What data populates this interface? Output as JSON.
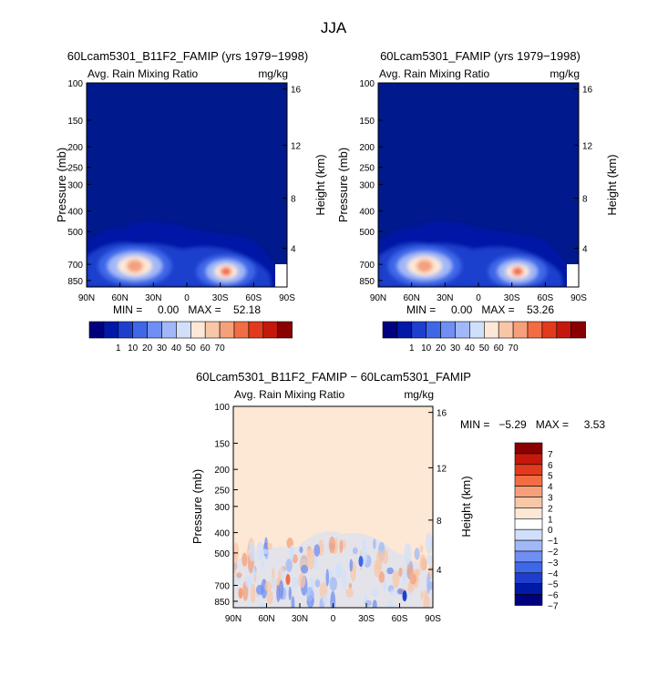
{
  "figure_title": "JJA",
  "chart_data": [
    {
      "type": "heatmap",
      "title": "60Lcam5301_B11F2_FAMIP (yrs 1979−1998)",
      "subtitle": "Avg. Rain Mixing Ratio",
      "units": "mg/kg",
      "ylabel": "Pressure (mb)",
      "ylabel_right": "Height (km)",
      "x_ticks": [
        "90N",
        "60N",
        "30N",
        "0",
        "30S",
        "60S",
        "90S"
      ],
      "y_ticks": [
        "100",
        "150",
        "200",
        "250",
        "300",
        "400",
        "500",
        "700",
        "850"
      ],
      "y_ticks_right": [
        "16",
        "12",
        "8",
        "4"
      ],
      "stats": "MIN =     0.00   MAX =    52.18",
      "colorbar_labels": [
        "1",
        "10",
        "20",
        "30",
        "40",
        "50",
        "60",
        "70"
      ],
      "max_value": 52.18,
      "min_value": 0.0
    },
    {
      "type": "heatmap",
      "title": "60Lcam5301_FAMIP (yrs 1979−1998)",
      "subtitle": "Avg. Rain Mixing Ratio",
      "units": "mg/kg",
      "ylabel": "Pressure (mb)",
      "ylabel_right": "Height (km)",
      "x_ticks": [
        "90N",
        "60N",
        "30N",
        "0",
        "30S",
        "60S",
        "90S"
      ],
      "y_ticks": [
        "100",
        "150",
        "200",
        "250",
        "300",
        "400",
        "500",
        "700",
        "850"
      ],
      "y_ticks_right": [
        "16",
        "12",
        "8",
        "4"
      ],
      "stats": "MIN =     0.00   MAX =    53.26",
      "colorbar_labels": [
        "1",
        "10",
        "20",
        "30",
        "40",
        "50",
        "60",
        "70"
      ],
      "max_value": 53.26,
      "min_value": 0.0
    },
    {
      "type": "heatmap",
      "title": "60Lcam5301_B11F2_FAMIP − 60Lcam5301_FAMIP",
      "subtitle": "Avg. Rain Mixing Ratio",
      "units": "mg/kg",
      "ylabel": "Pressure (mb)",
      "ylabel_right": "Height (km)",
      "x_ticks": [
        "90N",
        "60N",
        "30N",
        "0",
        "30S",
        "60S",
        "90S"
      ],
      "y_ticks": [
        "100",
        "150",
        "200",
        "250",
        "300",
        "400",
        "500",
        "700",
        "850"
      ],
      "y_ticks_right": [
        "16",
        "12",
        "8",
        "4"
      ],
      "stats": "MIN =   −5.29   MAX =     3.53",
      "colorbar_labels": [
        "7",
        "6",
        "5",
        "4",
        "3",
        "2",
        "1",
        "0",
        "−1",
        "−2",
        "−3",
        "−4",
        "−5",
        "−6",
        "−7"
      ],
      "max_value": 3.53,
      "min_value": -5.29
    }
  ],
  "colors": {
    "field_base": "#00198c",
    "diff_base": "#fde7d5",
    "seq_palette": [
      "#00007f",
      "#0019a6",
      "#1e3fce",
      "#3e68e8",
      "#6f8ff2",
      "#a0b8f7",
      "#d0e0fb",
      "#fde8d8",
      "#f8c7a8",
      "#f5a07a",
      "#f26d44",
      "#e23a1c",
      "#c4180c",
      "#8a0000"
    ],
    "div_palette": [
      "#8a0000",
      "#c4180c",
      "#e23a1c",
      "#f26d44",
      "#f5a07a",
      "#f8c7a8",
      "#fde7d5",
      "#ffffff",
      "#d0e0fb",
      "#a0b8f7",
      "#6f8ff2",
      "#3e68e8",
      "#1e3fce",
      "#0019a6",
      "#00007f"
    ]
  }
}
